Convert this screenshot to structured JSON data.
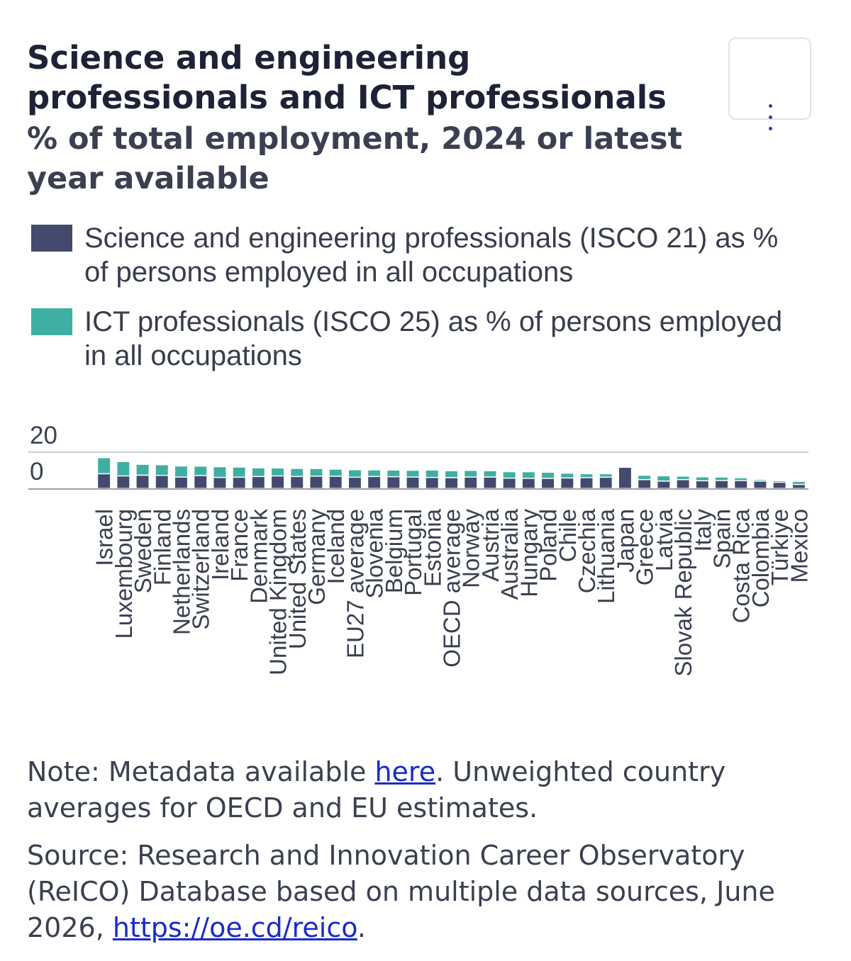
{
  "chart_data": {
    "type": "bar",
    "stacked": true,
    "title": "Science and engineering professionals and ICT professionals",
    "subtitle": "% of total employment, 2024 or latest year available",
    "categories": [
      "Israel",
      "Luxembourg",
      "Sweden",
      "Finland",
      "Netherlands",
      "Switzerland",
      "Ireland",
      "France",
      "Denmark",
      "United Kingdom",
      "United States",
      "Germany",
      "Iceland",
      "EU27 average",
      "Slovenia",
      "Belgium",
      "Portugal",
      "Estonia",
      "OECD average",
      "Norway",
      "Austria",
      "Australia",
      "Hungary",
      "Poland",
      "Chile",
      "Czechia",
      "Lithuania",
      "Japan",
      "Greece",
      "Latvia",
      "Slovak Republic",
      "Italy",
      "Spain",
      "Costa Rica",
      "Colombia",
      "Türkiye",
      "Mexico"
    ],
    "series": [
      {
        "name": "Science and engineering professionals (ISCO 21) as % of persons employed in all occupations",
        "color": "#444a6e",
        "values": [
          8.0,
          6.8,
          7.2,
          7.1,
          6.2,
          7.0,
          6.0,
          6.1,
          6.5,
          6.8,
          6.5,
          6.7,
          6.6,
          6.1,
          6.5,
          6.4,
          6.2,
          6.0,
          5.9,
          6.2,
          6.2,
          5.6,
          5.5,
          5.5,
          5.7,
          5.9,
          6.1,
          11.5,
          4.8,
          4.0,
          4.8,
          4.2,
          4.3,
          4.3,
          4.0,
          3.4,
          2.2
        ]
      },
      {
        "name": "ICT professionals (ISCO 25) as % of persons employed in all occupations",
        "color": "#3fafa3",
        "values": [
          8.7,
          7.8,
          5.9,
          5.8,
          6.0,
          5.1,
          5.8,
          5.5,
          4.7,
          4.3,
          4.4,
          4.1,
          3.9,
          4.1,
          3.6,
          3.6,
          3.7,
          4.0,
          3.7,
          3.6,
          3.4,
          3.5,
          3.6,
          3.3,
          2.6,
          2.1,
          1.9,
          0.0,
          2.4,
          2.9,
          1.9,
          2.1,
          1.9,
          1.5,
          0.9,
          0.8,
          1.7
        ]
      }
    ],
    "ylim": [
      0,
      20
    ],
    "yticks": [
      20,
      0
    ],
    "grid": true,
    "legend": "top"
  },
  "note": {
    "before": "Note: Metadata available ",
    "link": "here",
    "after": ". Unweighted country averages for OECD and EU estimates."
  },
  "source": {
    "before": "Source: Research and Innovation Career Observatory (ReICO) Database based on multiple data sources, June 2026, ",
    "link": "https://oe.cd/reico",
    "after": "."
  }
}
